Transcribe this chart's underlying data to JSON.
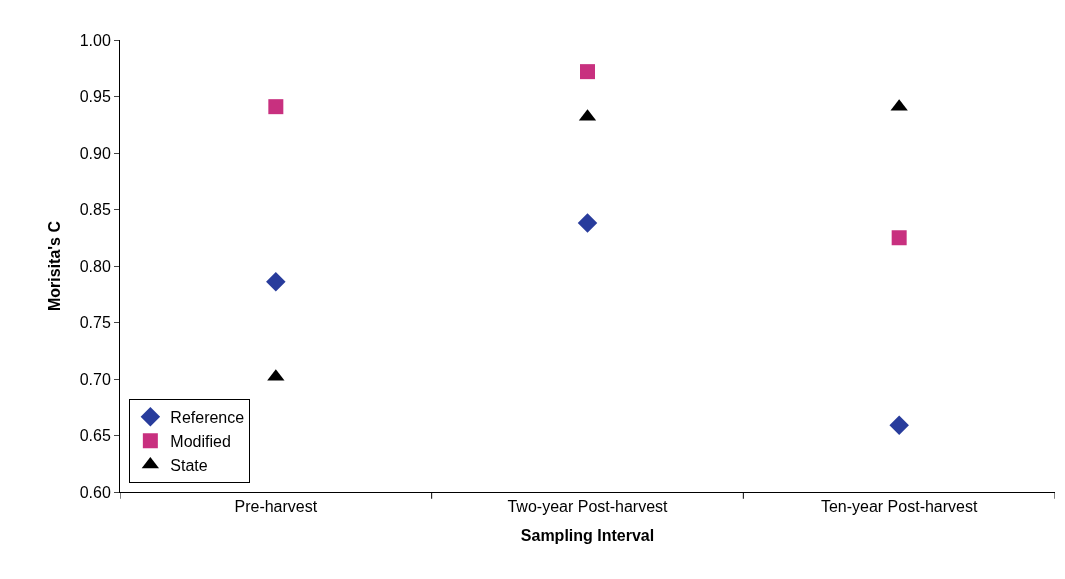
{
  "chart_data": {
    "type": "scatter",
    "xlabel": "Sampling Interval",
    "ylabel": "Morisita's C",
    "categories": [
      "Pre-harvest",
      "Two-year Post-harvest",
      "Ten-year Post-harvest"
    ],
    "series": [
      {
        "name": "Reference",
        "color": "#283c9c",
        "marker": "diamond",
        "values": [
          0.786,
          0.838,
          0.659
        ]
      },
      {
        "name": "Modified",
        "color": "#c8307f",
        "marker": "square",
        "values": [
          0.941,
          0.972,
          0.825
        ]
      },
      {
        "name": "State",
        "color": "#000000",
        "marker": "triangle",
        "values": [
          0.702,
          0.932,
          0.941
        ]
      }
    ],
    "ylim": [
      0.6,
      1.0
    ],
    "yticks": [
      {
        "value": 0.6,
        "label": "0.60"
      },
      {
        "value": 0.65,
        "label": "0.65"
      },
      {
        "value": 0.7,
        "label": "0.70"
      },
      {
        "value": 0.75,
        "label": "0.75"
      },
      {
        "value": 0.8,
        "label": "0.80"
      },
      {
        "value": 0.85,
        "label": "0.85"
      },
      {
        "value": 0.9,
        "label": "0.90"
      },
      {
        "value": 0.95,
        "label": "0.95"
      },
      {
        "value": 1.0,
        "label": "1.00"
      }
    ],
    "legend": "bottom left"
  }
}
